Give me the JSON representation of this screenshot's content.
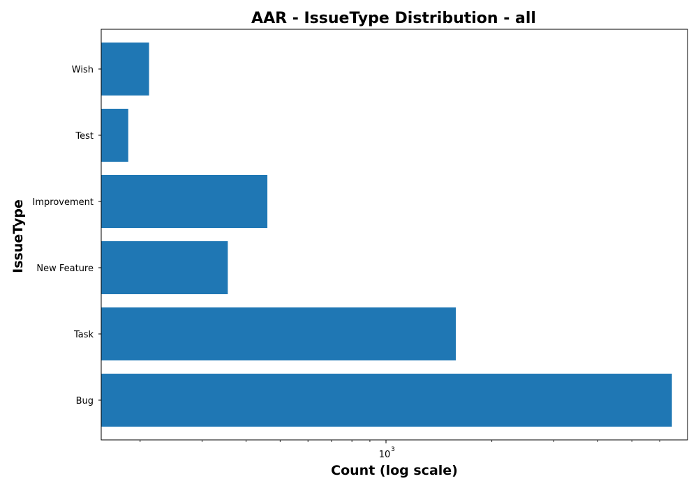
{
  "chart_data": {
    "type": "bar",
    "orientation": "horizontal",
    "title": "AAR - IssueType Distribution - all",
    "xlabel": "Count (log scale)",
    "ylabel": "IssueType",
    "x_scale": "log",
    "xlim": [
      155,
      7200
    ],
    "x_major_ticks": [
      {
        "value": 1000,
        "base": "10",
        "exponent": "3"
      }
    ],
    "x_minor_ticks": [
      200,
      300,
      400,
      500,
      600,
      700,
      800,
      900,
      2000,
      3000,
      4000,
      5000,
      6000
    ],
    "grid": false,
    "bar_color": "#1f77b4",
    "categories": [
      "Bug",
      "Task",
      "New Feature",
      "Improvement",
      "Test",
      "Wish"
    ],
    "values": [
      6500,
      1580,
      355,
      460,
      185,
      212
    ]
  }
}
